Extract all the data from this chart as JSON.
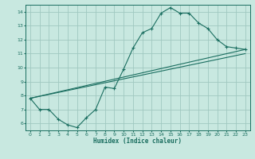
{
  "xlabel": "Humidex (Indice chaleur)",
  "bg_color": "#c8e8e0",
  "grid_color": "#a0c8c0",
  "line_color": "#1a6e60",
  "xlim": [
    -0.5,
    23.5
  ],
  "ylim": [
    5.5,
    14.5
  ],
  "xticks": [
    0,
    1,
    2,
    3,
    4,
    5,
    6,
    7,
    8,
    9,
    10,
    11,
    12,
    13,
    14,
    15,
    16,
    17,
    18,
    19,
    20,
    21,
    22,
    23
  ],
  "yticks": [
    6,
    7,
    8,
    9,
    10,
    11,
    12,
    13,
    14
  ],
  "line1_x": [
    0,
    1,
    2,
    3,
    4,
    5,
    6,
    7,
    8,
    9,
    10,
    11,
    12,
    13,
    14,
    15,
    16,
    17,
    18,
    19,
    20,
    21,
    22,
    23
  ],
  "line1_y": [
    7.8,
    7.0,
    7.0,
    6.3,
    5.9,
    5.7,
    6.4,
    7.0,
    8.6,
    8.5,
    9.9,
    11.4,
    12.5,
    12.8,
    13.9,
    14.3,
    13.9,
    13.9,
    13.2,
    12.8,
    12.0,
    11.5,
    11.4,
    11.3
  ],
  "line2_x": [
    0,
    23
  ],
  "line2_y": [
    7.8,
    11.3
  ],
  "line3_x": [
    0,
    23
  ],
  "line3_y": [
    7.8,
    11.0
  ]
}
